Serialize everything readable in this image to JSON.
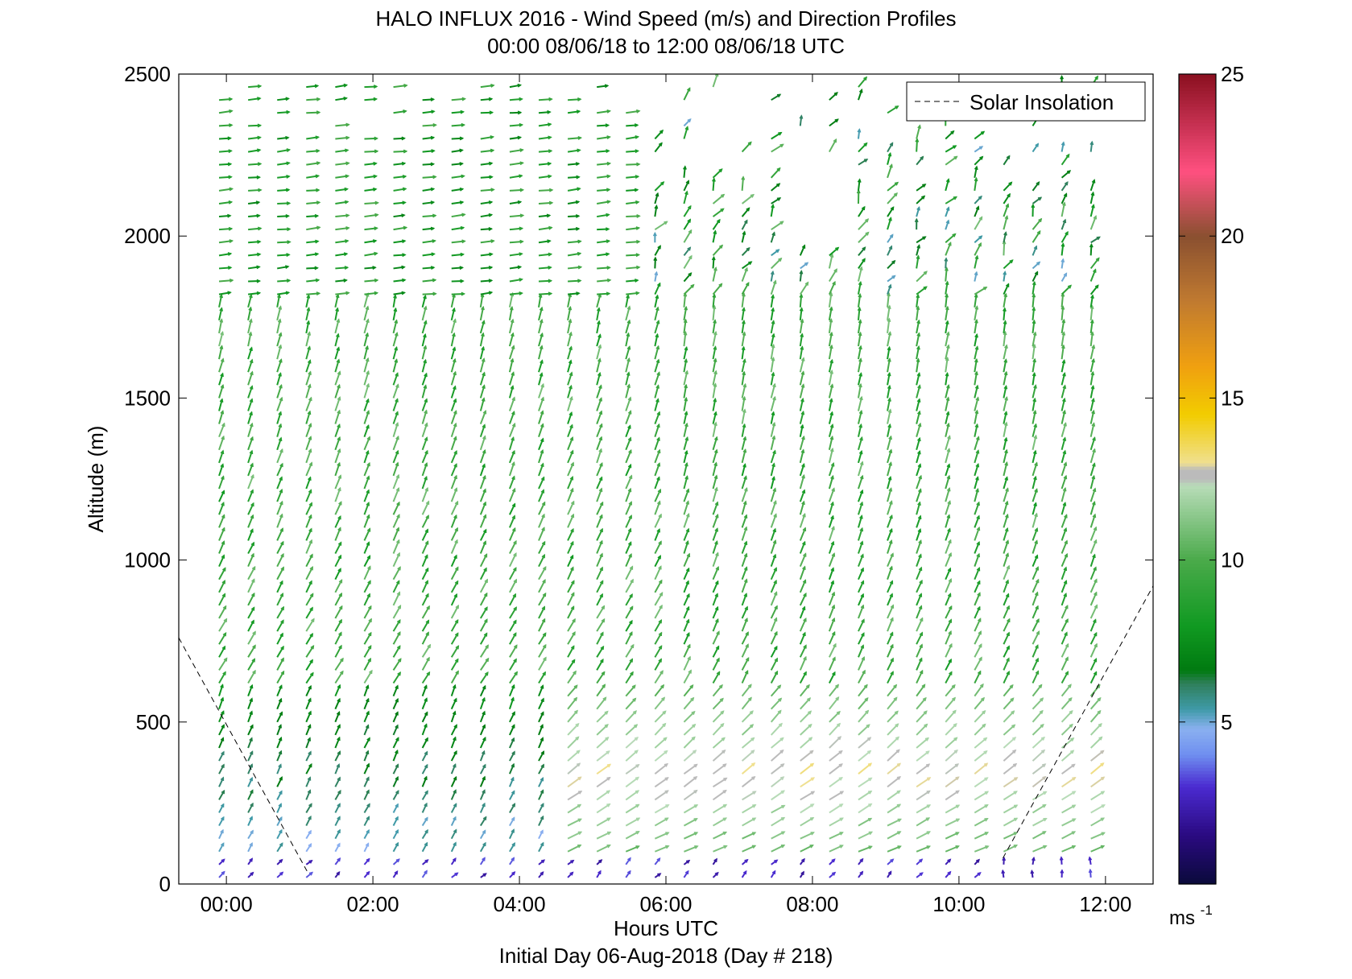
{
  "chart_data": {
    "type": "quiver",
    "title": "HALO INFLUX 2016 - Wind Speed (m/s) and Direction Profiles",
    "subtitle": "00:00 08/06/18 to 12:00 08/06/18  UTC",
    "xlabel": "Hours UTC",
    "xlabel2": "Initial Day 06-Aug-2018 (Day # 218)",
    "ylabel": "Altitude (m)",
    "xlim": [
      -0.65,
      12.65
    ],
    "ylim": [
      0,
      2500
    ],
    "x_ticks": [
      {
        "value": 0,
        "label": "00:00"
      },
      {
        "value": 2,
        "label": "02:00"
      },
      {
        "value": 4,
        "label": "04:00"
      },
      {
        "value": 6,
        "label": "06:00"
      },
      {
        "value": 8,
        "label": "08:00"
      },
      {
        "value": 10,
        "label": "10:00"
      },
      {
        "value": 12,
        "label": "12:00"
      }
    ],
    "y_ticks": [
      {
        "value": 0,
        "label": "0"
      },
      {
        "value": 500,
        "label": "500"
      },
      {
        "value": 1000,
        "label": "1000"
      },
      {
        "value": 1500,
        "label": "1500"
      },
      {
        "value": 2000,
        "label": "2000"
      },
      {
        "value": 2500,
        "label": "2500"
      }
    ],
    "legend": {
      "position": "top-right",
      "entries": [
        "Solar Insolation"
      ]
    },
    "solar_insolation": {
      "style": "dashed",
      "color": "#000000",
      "points": [
        [
          -0.65,
          760
        ],
        [
          1.1,
          40
        ]
      ],
      "points2": [
        [
          10.6,
          80
        ],
        [
          12.65,
          920
        ]
      ]
    },
    "colorbar": {
      "range": [
        0,
        25
      ],
      "unit": "ms",
      "unit_exponent": "-1",
      "tick_labels": [
        "5",
        "10",
        "15",
        "20",
        "25"
      ],
      "tick_values": [
        5,
        10,
        15,
        20,
        25
      ],
      "stops": [
        {
          "v": 0,
          "c": "#0a0a3a"
        },
        {
          "v": 1.5,
          "c": "#2a0a80"
        },
        {
          "v": 3,
          "c": "#4a2ad0"
        },
        {
          "v": 4,
          "c": "#6f8ff0"
        },
        {
          "v": 4.8,
          "c": "#8ab0f0"
        },
        {
          "v": 5.4,
          "c": "#3f9aa8"
        },
        {
          "v": 6.2,
          "c": "#2f7f5a"
        },
        {
          "v": 6.6,
          "c": "#007a10"
        },
        {
          "v": 8,
          "c": "#119a22"
        },
        {
          "v": 10,
          "c": "#4aaa4a"
        },
        {
          "v": 12.3,
          "c": "#b8dcb8"
        },
        {
          "v": 12.5,
          "c": "#bbbbbb"
        },
        {
          "v": 12.8,
          "c": "#bbbbbb"
        },
        {
          "v": 13,
          "c": "#f0e090"
        },
        {
          "v": 14.5,
          "c": "#f2cc00"
        },
        {
          "v": 16,
          "c": "#f0a010"
        },
        {
          "v": 18,
          "c": "#c07a30"
        },
        {
          "v": 20,
          "c": "#8a5030"
        },
        {
          "v": 22,
          "c": "#ff5080"
        },
        {
          "v": 25,
          "c": "#8a1020"
        }
      ]
    },
    "field": {
      "x_start": -0.1,
      "x_end": 11.8,
      "columns": 31,
      "y_step": 40,
      "y_max": 2480,
      "arrow_scale": 0.055,
      "description_of_regimes": [
        {
          "x_range": [
            -0.1,
            5.6
          ],
          "y_range": [
            1800,
            2500
          ],
          "speed": 8.5,
          "direction_deg": 270
        },
        {
          "x_range": [
            -0.1,
            11.8
          ],
          "y_range": [
            600,
            1800
          ],
          "speed": 9.5,
          "direction_deg": 240
        },
        {
          "x_range": [
            4.5,
            11.8
          ],
          "y_range": [
            150,
            600
          ],
          "speed": 11.5,
          "direction_deg": 250
        },
        {
          "x_range": [
            -0.1,
            4.5
          ],
          "y_range": [
            0,
            600
          ],
          "speed": 5,
          "direction_deg": 220
        },
        {
          "x_range": [
            -0.1,
            11.8
          ],
          "y_range": [
            0,
            80
          ],
          "speed": 2.5,
          "direction_deg": 200
        }
      ]
    }
  }
}
